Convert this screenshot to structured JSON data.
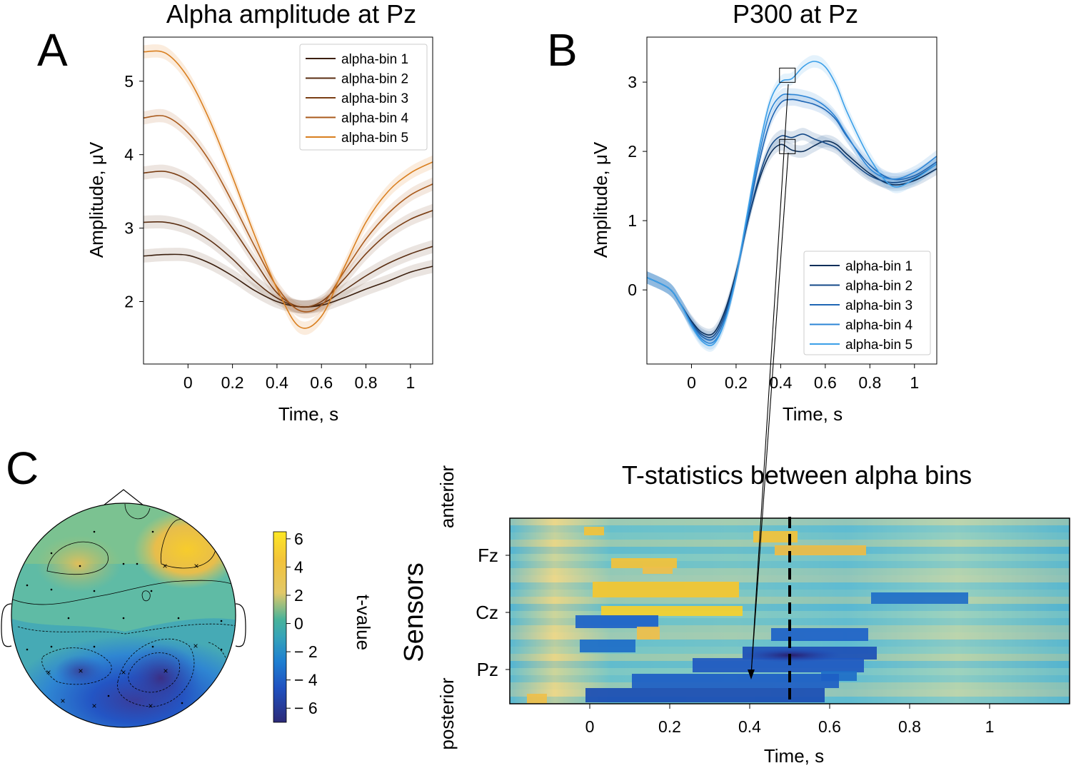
{
  "colors": {
    "brown_bins": [
      "#3b1f0e",
      "#5a2e12",
      "#7a3e14",
      "#a95a1c",
      "#d97f1f"
    ],
    "blue_bins": [
      "#0b2e59",
      "#154a88",
      "#1f66b4",
      "#2c85d6",
      "#3b9fe8"
    ]
  },
  "panels": {
    "A": {
      "letter": "A"
    },
    "B": {
      "letter": "B"
    },
    "C": {
      "letter": "C"
    }
  },
  "chart_data": [
    {
      "id": "A",
      "type": "line",
      "title": "Alpha amplitude at Pz",
      "xlabel": "Time, s",
      "ylabel": "Amplitude, μV",
      "xlim": [
        -0.2,
        1.1
      ],
      "ylim": [
        1.15,
        5.6
      ],
      "xticks": [
        0,
        0.2,
        0.4,
        0.6,
        0.8,
        1
      ],
      "xtick_labels": [
        "0",
        "0.2",
        "0.4",
        "0.6",
        "0.8",
        "1"
      ],
      "yticks": [
        2,
        3,
        4,
        5
      ],
      "ytick_labels": [
        "2",
        "3",
        "4",
        "5"
      ],
      "legend": "top-right",
      "x": [
        -0.2,
        -0.1,
        0,
        0.1,
        0.2,
        0.3,
        0.4,
        0.5,
        0.6,
        0.7,
        0.8,
        0.9,
        1.0,
        1.1
      ],
      "series": [
        {
          "name": "alpha-bin 1",
          "values": [
            2.62,
            2.64,
            2.63,
            2.52,
            2.35,
            2.15,
            2.0,
            1.93,
            1.95,
            2.05,
            2.17,
            2.28,
            2.4,
            2.48
          ]
        },
        {
          "name": "alpha-bin 2",
          "values": [
            3.08,
            3.08,
            3.0,
            2.83,
            2.58,
            2.28,
            2.05,
            1.93,
            1.97,
            2.15,
            2.35,
            2.52,
            2.65,
            2.75
          ]
        },
        {
          "name": "alpha-bin 3",
          "values": [
            3.75,
            3.77,
            3.65,
            3.38,
            3.0,
            2.55,
            2.12,
            1.93,
            2.0,
            2.3,
            2.65,
            2.93,
            3.12,
            3.24
          ]
        },
        {
          "name": "alpha-bin 4",
          "values": [
            4.5,
            4.52,
            4.3,
            3.9,
            3.35,
            2.75,
            2.2,
            1.88,
            1.95,
            2.4,
            2.85,
            3.2,
            3.45,
            3.6
          ]
        },
        {
          "name": "alpha-bin 5",
          "values": [
            5.4,
            5.38,
            5.05,
            4.45,
            3.7,
            2.9,
            2.18,
            1.66,
            1.8,
            2.45,
            3.08,
            3.5,
            3.75,
            3.9
          ]
        }
      ]
    },
    {
      "id": "B",
      "type": "line",
      "title": "P300 at Pz",
      "xlabel": "Time, s",
      "ylabel": "Amplitude, μV",
      "xlim": [
        -0.2,
        1.1
      ],
      "ylim": [
        -1.07,
        3.65
      ],
      "xticks": [
        0,
        0.2,
        0.4,
        0.6,
        0.8,
        1
      ],
      "xtick_labels": [
        "0",
        "0.2",
        "0.4",
        "0.6",
        "0.8",
        "1"
      ],
      "yticks": [
        0,
        1,
        2,
        3
      ],
      "ytick_labels": [
        "0",
        "1",
        "2",
        "3"
      ],
      "legend": "bottom-right",
      "x": [
        -0.2,
        -0.1,
        -0.05,
        0,
        0.05,
        0.1,
        0.15,
        0.2,
        0.25,
        0.3,
        0.35,
        0.4,
        0.45,
        0.5,
        0.55,
        0.6,
        0.65,
        0.7,
        0.8,
        0.9,
        1.0,
        1.1
      ],
      "series": [
        {
          "name": "alpha-bin 1",
          "values": [
            0.18,
            0.02,
            -0.2,
            -0.45,
            -0.62,
            -0.62,
            -0.3,
            0.25,
            0.95,
            1.55,
            1.95,
            2.1,
            2.02,
            2.0,
            2.08,
            2.15,
            2.1,
            1.95,
            1.68,
            1.52,
            1.58,
            1.75
          ]
        },
        {
          "name": "alpha-bin 2",
          "values": [
            0.18,
            0.02,
            -0.2,
            -0.47,
            -0.65,
            -0.66,
            -0.35,
            0.22,
            0.95,
            1.6,
            2.05,
            2.22,
            2.2,
            2.25,
            2.18,
            2.12,
            2.05,
            1.9,
            1.65,
            1.55,
            1.62,
            1.82
          ]
        },
        {
          "name": "alpha-bin 3",
          "values": [
            0.18,
            0.02,
            -0.2,
            -0.48,
            -0.68,
            -0.7,
            -0.4,
            0.2,
            1.0,
            1.8,
            2.4,
            2.7,
            2.75,
            2.72,
            2.68,
            2.6,
            2.45,
            2.2,
            1.8,
            1.6,
            1.65,
            1.85
          ]
        },
        {
          "name": "alpha-bin 4",
          "values": [
            0.18,
            0.02,
            -0.2,
            -0.5,
            -0.72,
            -0.75,
            -0.45,
            0.18,
            1.05,
            1.9,
            2.55,
            2.8,
            2.82,
            2.8,
            2.75,
            2.65,
            2.48,
            2.22,
            1.75,
            1.6,
            1.7,
            1.93
          ]
        },
        {
          "name": "alpha-bin 5",
          "values": [
            0.18,
            0.02,
            -0.2,
            -0.52,
            -0.75,
            -0.78,
            -0.45,
            0.2,
            1.1,
            2.0,
            2.7,
            3.0,
            3.05,
            3.22,
            3.3,
            3.22,
            2.95,
            2.55,
            1.9,
            1.5,
            1.6,
            1.82
          ]
        }
      ],
      "annotation_boxes": [
        {
          "x": 0.43,
          "y": 3.1
        },
        {
          "x": 0.43,
          "y": 2.07
        }
      ]
    },
    {
      "id": "C-topomap",
      "type": "heatmap",
      "colorbar_label": "t-value",
      "colorbar_range": [
        -7,
        6.5
      ],
      "colorbar_ticks": [
        6,
        4,
        2,
        0,
        -2,
        -4,
        -6
      ],
      "colorbar_tick_labels": [
        "6",
        "4",
        "2",
        "0",
        "− 2",
        "− 4",
        "− 6"
      ]
    },
    {
      "id": "C-matrix",
      "type": "heatmap",
      "title": "T-statistics between alpha bins",
      "xlabel": "Time, s",
      "ylabel": "Sensors",
      "y_top_label": "anterior",
      "y_bottom_label": "posterior",
      "xlim": [
        -0.2,
        1.2
      ],
      "xticks": [
        0,
        0.2,
        0.4,
        0.6,
        0.8,
        1
      ],
      "xtick_labels": [
        "0",
        "0.2",
        "0.4",
        "0.6",
        "0.8",
        "1"
      ],
      "sensor_labels": [
        "Fz",
        "Cz",
        "Pz"
      ],
      "marker_time": 0.5
    }
  ]
}
